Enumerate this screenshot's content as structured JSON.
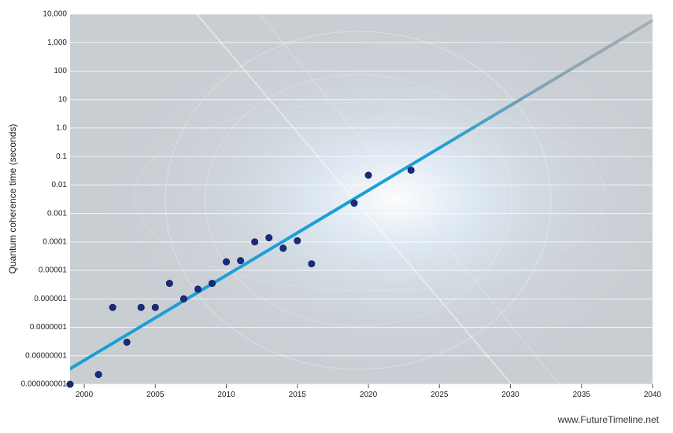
{
  "chart_data": {
    "type": "scatter",
    "title": "",
    "xlabel": "",
    "ylabel": "Quantum coherence time (seconds)",
    "x_scale": "linear",
    "y_scale": "log",
    "xlim": [
      1999,
      2040
    ],
    "ylim": [
      1e-09,
      10000
    ],
    "x_ticks": [
      2000,
      2005,
      2010,
      2015,
      2020,
      2025,
      2030,
      2035,
      2040
    ],
    "y_ticks": [
      1e-09,
      1e-08,
      1e-07,
      1e-06,
      1e-05,
      0.0001,
      0.001,
      0.01,
      0.1,
      1,
      10,
      100,
      1000,
      10000
    ],
    "y_tick_labels": [
      "0.000000001",
      "0.00000001",
      "0.0000001",
      "0.000001",
      "0.00001",
      "0.0001",
      "0.001",
      "0.01",
      "0.1",
      "1.0",
      "10",
      "100",
      "1,000",
      "10,000"
    ],
    "grid": true,
    "points": [
      {
        "x": 1999,
        "y": 1e-09
      },
      {
        "x": 2001,
        "y": 2.2e-09
      },
      {
        "x": 2002,
        "y": 5e-07
      },
      {
        "x": 2003,
        "y": 3e-08
      },
      {
        "x": 2004,
        "y": 5e-07
      },
      {
        "x": 2005,
        "y": 5e-07
      },
      {
        "x": 2006,
        "y": 3.5e-06
      },
      {
        "x": 2007,
        "y": 1e-06
      },
      {
        "x": 2008,
        "y": 2.2e-06
      },
      {
        "x": 2009,
        "y": 3.5e-06
      },
      {
        "x": 2010,
        "y": 2e-05
      },
      {
        "x": 2011,
        "y": 2.2e-05
      },
      {
        "x": 2012,
        "y": 0.0001
      },
      {
        "x": 2013,
        "y": 0.00014
      },
      {
        "x": 2014,
        "y": 6e-05
      },
      {
        "x": 2015,
        "y": 0.00011
      },
      {
        "x": 2016,
        "y": 1.7e-05
      },
      {
        "x": 2019,
        "y": 0.0023
      },
      {
        "x": 2020,
        "y": 0.022
      },
      {
        "x": 2023,
        "y": 0.033
      }
    ],
    "trend": {
      "x": [
        1999,
        2040
      ],
      "y": [
        3.5e-09,
        6000
      ]
    },
    "colors": {
      "points": "#1b2a7a",
      "trend": "#1aa0d6",
      "grid": "#ffffff",
      "background": "#c9ced3"
    }
  },
  "credit": "www.FutureTimeline.net"
}
